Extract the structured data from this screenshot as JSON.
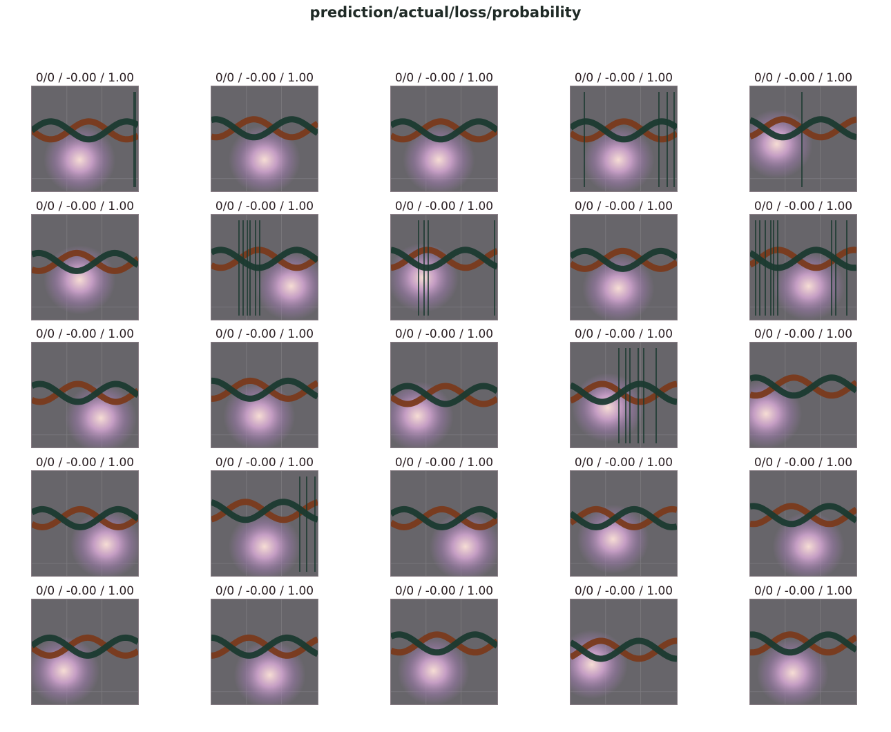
{
  "figure": {
    "title": "prediction/actual/loss/probability"
  },
  "colors": {
    "background": "#67656a",
    "wave_orange": "#7a3a1c",
    "wave_green": "#1b3a30",
    "glow_center": "#f6ddd4",
    "glow_mid": "#c9a0c8",
    "glow_outer": "#9a7aa8"
  },
  "chart_data": {
    "type": "image-grid",
    "rows": 5,
    "cols": 5,
    "panels": [
      {
        "title": "0/0 / -0.00 / 1.00"
      },
      {
        "title": "0/0 / -0.00 / 1.00"
      },
      {
        "title": "0/0 / -0.00 / 1.00"
      },
      {
        "title": "0/0 / -0.00 / 1.00"
      },
      {
        "title": "0/0 / -0.00 / 1.00"
      },
      {
        "title": "0/0 / -0.00 / 1.00"
      },
      {
        "title": "0/0 / -0.00 / 1.00"
      },
      {
        "title": "0/0 / -0.00 / 1.00"
      },
      {
        "title": "0/0 / -0.00 / 1.00"
      },
      {
        "title": "0/0 / -0.00 / 1.00"
      },
      {
        "title": "0/0 / -0.00 / 1.00"
      },
      {
        "title": "0/0 / -0.00 / 1.00"
      },
      {
        "title": "0/0 / -0.00 / 1.00"
      },
      {
        "title": "0/0 / -0.00 / 1.00"
      },
      {
        "title": "0/0 / -0.00 / 1.00"
      },
      {
        "title": "0/0 / -0.00 / 1.00"
      },
      {
        "title": "0/0 / -0.00 / 1.00"
      },
      {
        "title": "0/0 / -0.00 / 1.00"
      },
      {
        "title": "0/0 / -0.00 / 1.00"
      },
      {
        "title": "0/0 / -0.00 / 1.00"
      },
      {
        "title": "0/0 / -0.00 / 1.00"
      },
      {
        "title": "0/0 / -0.00 / 1.00"
      },
      {
        "title": "0/0 / -0.00 / 1.00"
      },
      {
        "title": "0/0 / -0.00 / 1.00"
      },
      {
        "title": "0/0 / -0.00 / 1.00"
      }
    ]
  }
}
